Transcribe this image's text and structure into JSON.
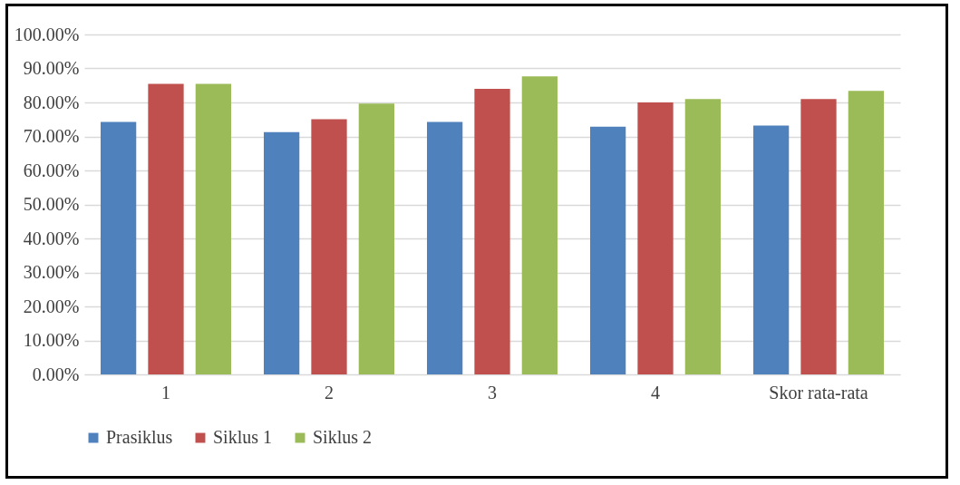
{
  "chart_data": {
    "type": "bar",
    "categories": [
      "1",
      "2",
      "3",
      "4",
      "Skor rata-rata"
    ],
    "series": [
      {
        "name": "Prasiklus",
        "color": "#4f81bd",
        "values": [
          74.3,
          71.3,
          74.3,
          72.9,
          73.2
        ]
      },
      {
        "name": "Siklus 1",
        "color": "#c0504d",
        "values": [
          85.5,
          75.1,
          84.0,
          80.0,
          81.0
        ]
      },
      {
        "name": "Siklus 2",
        "color": "#9bbb59",
        "values": [
          85.5,
          79.7,
          87.7,
          81.0,
          83.4
        ]
      }
    ],
    "ylim": [
      0,
      100
    ],
    "yticks": [
      {
        "value": 0,
        "label": "0.00%"
      },
      {
        "value": 10,
        "label": "10.00%"
      },
      {
        "value": 20,
        "label": "20.00%"
      },
      {
        "value": 30,
        "label": "30.00%"
      },
      {
        "value": 40,
        "label": "40.00%"
      },
      {
        "value": 50,
        "label": "50.00%"
      },
      {
        "value": 60,
        "label": "60.00%"
      },
      {
        "value": 70,
        "label": "70.00%"
      },
      {
        "value": 80,
        "label": "80.00%"
      },
      {
        "value": 90,
        "label": "90.00%"
      },
      {
        "value": 100,
        "label": "100.00%"
      }
    ],
    "grid": "y",
    "legend": "bottom"
  }
}
